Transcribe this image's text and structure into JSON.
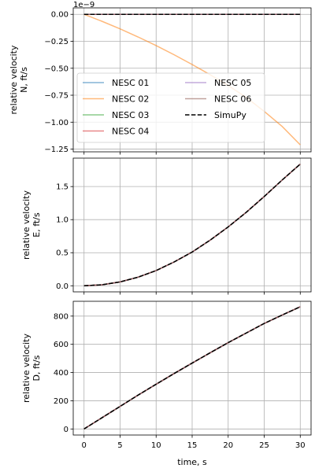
{
  "figure": {
    "xlabel": "time, s",
    "colors": {
      "NESC 01": "#1f77b4",
      "NESC 02": "#ff7f0e",
      "NESC 03": "#2ca02c",
      "NESC 04": "#d62728",
      "NESC 05": "#9467bd",
      "NESC 06": "#8c564b",
      "SimuPy": "#000000"
    }
  },
  "chart_data": [
    {
      "type": "line",
      "ylabel_lines": [
        "relative velocity",
        "N, ft/s"
      ],
      "offset_text": "1e−9",
      "xlim": [
        -1.5,
        31.5
      ],
      "ylim": [
        -1.275,
        0.06
      ],
      "xticks": [
        0,
        5,
        10,
        15,
        20,
        25,
        30
      ],
      "yticks": [
        0.0,
        -0.25,
        -0.5,
        -0.75,
        -1.0,
        -1.25
      ],
      "ytick_labels": [
        "0.00",
        "−0.25",
        "−0.50",
        "−0.75",
        "−1.00",
        "−1.25"
      ],
      "show_xticklabels": false,
      "grid": true,
      "legend": {
        "placement": "lower-left",
        "ncol": 2,
        "entries": [
          "NESC 01",
          "NESC 02",
          "NESC 03",
          "NESC 04",
          "NESC 05",
          "NESC 06",
          "SimuPy"
        ]
      },
      "x": [
        0,
        2.5,
        5,
        7.5,
        10,
        12.5,
        15,
        17.5,
        20,
        22.5,
        25,
        27.5,
        30
      ],
      "series": [
        {
          "name": "NESC 01",
          "values": [
            0,
            0,
            0,
            0,
            0,
            0,
            0,
            0,
            0,
            0,
            0,
            0,
            0
          ]
        },
        {
          "name": "NESC 02",
          "values": [
            0,
            -0.065,
            -0.135,
            -0.21,
            -0.29,
            -0.375,
            -0.465,
            -0.56,
            -0.66,
            -0.77,
            -0.9,
            -1.04,
            -1.21
          ]
        },
        {
          "name": "NESC 03",
          "values": [
            0,
            0,
            0,
            0,
            0,
            0,
            0,
            0,
            0,
            0,
            0,
            0,
            0
          ]
        },
        {
          "name": "NESC 04",
          "values": [
            0,
            0,
            0,
            0,
            0,
            0,
            0,
            0,
            0,
            0,
            0,
            0,
            0
          ]
        },
        {
          "name": "NESC 05",
          "values": [
            0,
            0,
            0,
            0,
            0,
            0,
            0,
            0,
            0,
            0,
            0,
            0,
            0
          ]
        },
        {
          "name": "NESC 06",
          "values": [
            0,
            0,
            0,
            0,
            0,
            0,
            0,
            0,
            0,
            0,
            0,
            0,
            0
          ]
        },
        {
          "name": "SimuPy",
          "dashed": true,
          "values": [
            0,
            0,
            0,
            0,
            0,
            0,
            0,
            0,
            0,
            0,
            0,
            0,
            0
          ]
        }
      ]
    },
    {
      "type": "line",
      "ylabel_lines": [
        "relative velocity",
        "E, ft/s"
      ],
      "xlim": [
        -1.5,
        31.5
      ],
      "ylim": [
        -0.092,
        1.93
      ],
      "xticks": [
        0,
        5,
        10,
        15,
        20,
        25,
        30
      ],
      "yticks": [
        0.0,
        0.5,
        1.0,
        1.5
      ],
      "ytick_labels": [
        "0.0",
        "0.5",
        "1.0",
        "1.5"
      ],
      "show_xticklabels": false,
      "grid": true,
      "x": [
        0,
        2.5,
        5,
        7.5,
        10,
        12.5,
        15,
        17.5,
        20,
        22.5,
        25,
        27.5,
        30
      ],
      "series": [
        {
          "name": "NESC 01",
          "values": [
            0,
            0.015,
            0.058,
            0.13,
            0.23,
            0.36,
            0.51,
            0.69,
            0.89,
            1.11,
            1.35,
            1.6,
            1.84
          ]
        },
        {
          "name": "NESC 02",
          "values": [
            0,
            0.015,
            0.058,
            0.13,
            0.23,
            0.36,
            0.51,
            0.69,
            0.89,
            1.11,
            1.35,
            1.6,
            1.84
          ]
        },
        {
          "name": "NESC 03",
          "values": [
            0,
            0.015,
            0.058,
            0.13,
            0.23,
            0.36,
            0.51,
            0.69,
            0.89,
            1.11,
            1.35,
            1.6,
            1.84
          ]
        },
        {
          "name": "NESC 04",
          "values": [
            0,
            0.015,
            0.058,
            0.13,
            0.23,
            0.36,
            0.51,
            0.69,
            0.89,
            1.11,
            1.35,
            1.6,
            1.84
          ]
        },
        {
          "name": "NESC 05",
          "values": [
            0,
            0.015,
            0.058,
            0.13,
            0.23,
            0.36,
            0.51,
            0.69,
            0.89,
            1.11,
            1.35,
            1.6,
            1.84
          ]
        },
        {
          "name": "NESC 06",
          "values": [
            0,
            0.015,
            0.058,
            0.13,
            0.23,
            0.36,
            0.51,
            0.69,
            0.89,
            1.11,
            1.35,
            1.6,
            1.84
          ]
        },
        {
          "name": "SimuPy",
          "dashed": true,
          "values": [
            0,
            0.015,
            0.058,
            0.13,
            0.23,
            0.36,
            0.51,
            0.69,
            0.89,
            1.11,
            1.35,
            1.6,
            1.84
          ]
        }
      ]
    },
    {
      "type": "line",
      "ylabel_lines": [
        "relative velocity",
        "D, ft/s"
      ],
      "xlim": [
        -1.5,
        31.5
      ],
      "ylim": [
        -43,
        905
      ],
      "xticks": [
        0,
        5,
        10,
        15,
        20,
        25,
        30
      ],
      "xtick_labels": [
        "0",
        "5",
        "10",
        "15",
        "20",
        "25",
        "30"
      ],
      "yticks": [
        0,
        200,
        400,
        600,
        800
      ],
      "ytick_labels": [
        "0",
        "200",
        "400",
        "600",
        "800"
      ],
      "show_xticklabels": true,
      "grid": true,
      "x": [
        0,
        2.5,
        5,
        7.5,
        10,
        12.5,
        15,
        17.5,
        20,
        22.5,
        25,
        27.5,
        30
      ],
      "series": [
        {
          "name": "NESC 01",
          "values": [
            0,
            80,
            160,
            240,
            317,
            393,
            467,
            540,
            612,
            680,
            748,
            808,
            866
          ]
        },
        {
          "name": "NESC 02",
          "values": [
            0,
            80,
            160,
            240,
            317,
            393,
            467,
            540,
            612,
            680,
            748,
            808,
            866
          ]
        },
        {
          "name": "NESC 03",
          "values": [
            0,
            80,
            160,
            240,
            317,
            393,
            467,
            540,
            612,
            680,
            748,
            808,
            866
          ]
        },
        {
          "name": "NESC 04",
          "values": [
            0,
            80,
            160,
            240,
            317,
            393,
            467,
            540,
            612,
            680,
            748,
            808,
            866
          ]
        },
        {
          "name": "NESC 05",
          "values": [
            0,
            80,
            160,
            240,
            317,
            393,
            467,
            540,
            612,
            680,
            748,
            808,
            866
          ]
        },
        {
          "name": "NESC 06",
          "values": [
            0,
            80,
            160,
            240,
            317,
            393,
            467,
            540,
            612,
            680,
            748,
            808,
            866
          ]
        },
        {
          "name": "SimuPy",
          "dashed": true,
          "values": [
            0,
            80,
            160,
            240,
            317,
            393,
            467,
            540,
            612,
            680,
            748,
            808,
            866
          ]
        }
      ]
    }
  ]
}
